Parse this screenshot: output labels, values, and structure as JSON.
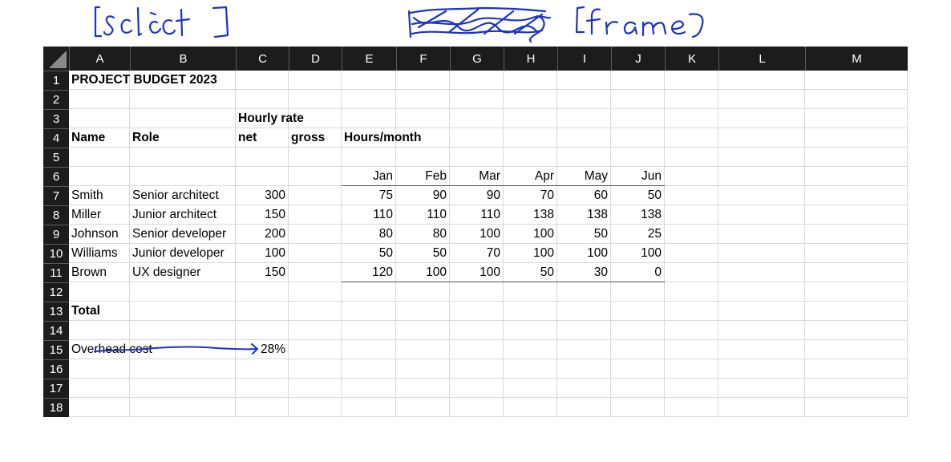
{
  "annotations": {
    "select_label": "[select]",
    "frame_label": "[frame]",
    "ink_color": "#1a33cc"
  },
  "sheet": {
    "columns": [
      "A",
      "B",
      "C",
      "D",
      "E",
      "F",
      "G",
      "H",
      "I",
      "J",
      "K",
      "L",
      "M"
    ],
    "rows": [
      "1",
      "2",
      "3",
      "4",
      "5",
      "6",
      "7",
      "8",
      "9",
      "10",
      "11",
      "12",
      "13",
      "14",
      "15",
      "16",
      "17",
      "18"
    ],
    "title": "PROJECT BUDGET 2023",
    "hourly_rate_label": "Hourly rate",
    "net_label": "net",
    "gross_label": "gross",
    "name_label": "Name",
    "role_label": "Role",
    "hours_label": "Hours/month",
    "months": [
      "Jan",
      "Feb",
      "Mar",
      "Apr",
      "May",
      "Jun"
    ],
    "people": [
      {
        "name": "Smith",
        "role": "Senior architect",
        "net": "300",
        "hours": [
          "75",
          "90",
          "90",
          "70",
          "60",
          "50"
        ]
      },
      {
        "name": "Miller",
        "role": "Junior architect",
        "net": "150",
        "hours": [
          "110",
          "110",
          "110",
          "138",
          "138",
          "138"
        ]
      },
      {
        "name": "Johnson",
        "role": "Senior developer",
        "net": "200",
        "hours": [
          "80",
          "80",
          "100",
          "100",
          "50",
          "25"
        ]
      },
      {
        "name": "Williams",
        "role": "Junior developer",
        "net": "100",
        "hours": [
          "50",
          "50",
          "70",
          "100",
          "100",
          "100"
        ]
      },
      {
        "name": "Brown",
        "role": "UX designer",
        "net": "150",
        "hours": [
          "120",
          "100",
          "100",
          "50",
          "30",
          "0"
        ]
      }
    ],
    "total_label": "Total",
    "overhead_label": "Overhead cost",
    "overhead_value": "28%",
    "header_bg": "#1c1c1c",
    "grid_color": "#d9d9d9"
  }
}
